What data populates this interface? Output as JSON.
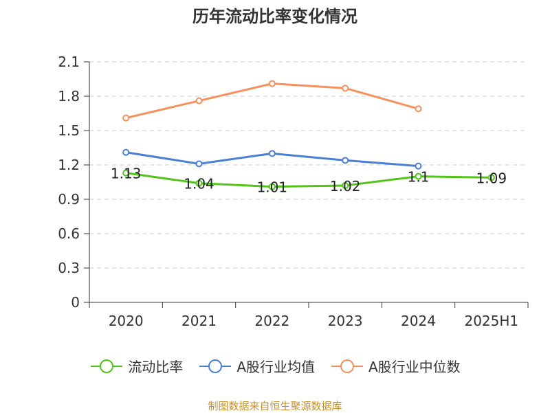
{
  "chart_data": {
    "type": "line",
    "title": "历年流动比率变化情况",
    "categories": [
      "2020",
      "2021",
      "2022",
      "2023",
      "2024",
      "2025H1"
    ],
    "ylim": [
      0,
      2.1
    ],
    "yticks": [
      "0",
      "0.3",
      "0.6",
      "0.9",
      "1.2",
      "1.5",
      "1.8",
      "2.1"
    ],
    "grid": true,
    "legend_position": "bottom",
    "series": [
      {
        "name": "流动比率",
        "color": "#52c41a",
        "values": [
          1.13,
          1.04,
          1.01,
          1.02,
          1.1,
          1.09
        ],
        "labels": [
          "1.13",
          "1.04",
          "1.01",
          "1.02",
          "1.1",
          "1.09"
        ]
      },
      {
        "name": "A股行业均值",
        "color": "#4a7fd8",
        "values": [
          1.31,
          1.21,
          1.3,
          1.24,
          1.19,
          null
        ]
      },
      {
        "name": "A股行业中位数",
        "color": "#f7905a",
        "values": [
          1.61,
          1.76,
          1.91,
          1.87,
          1.69,
          null
        ]
      }
    ]
  },
  "footer": "制图数据来自恒生聚源数据库"
}
